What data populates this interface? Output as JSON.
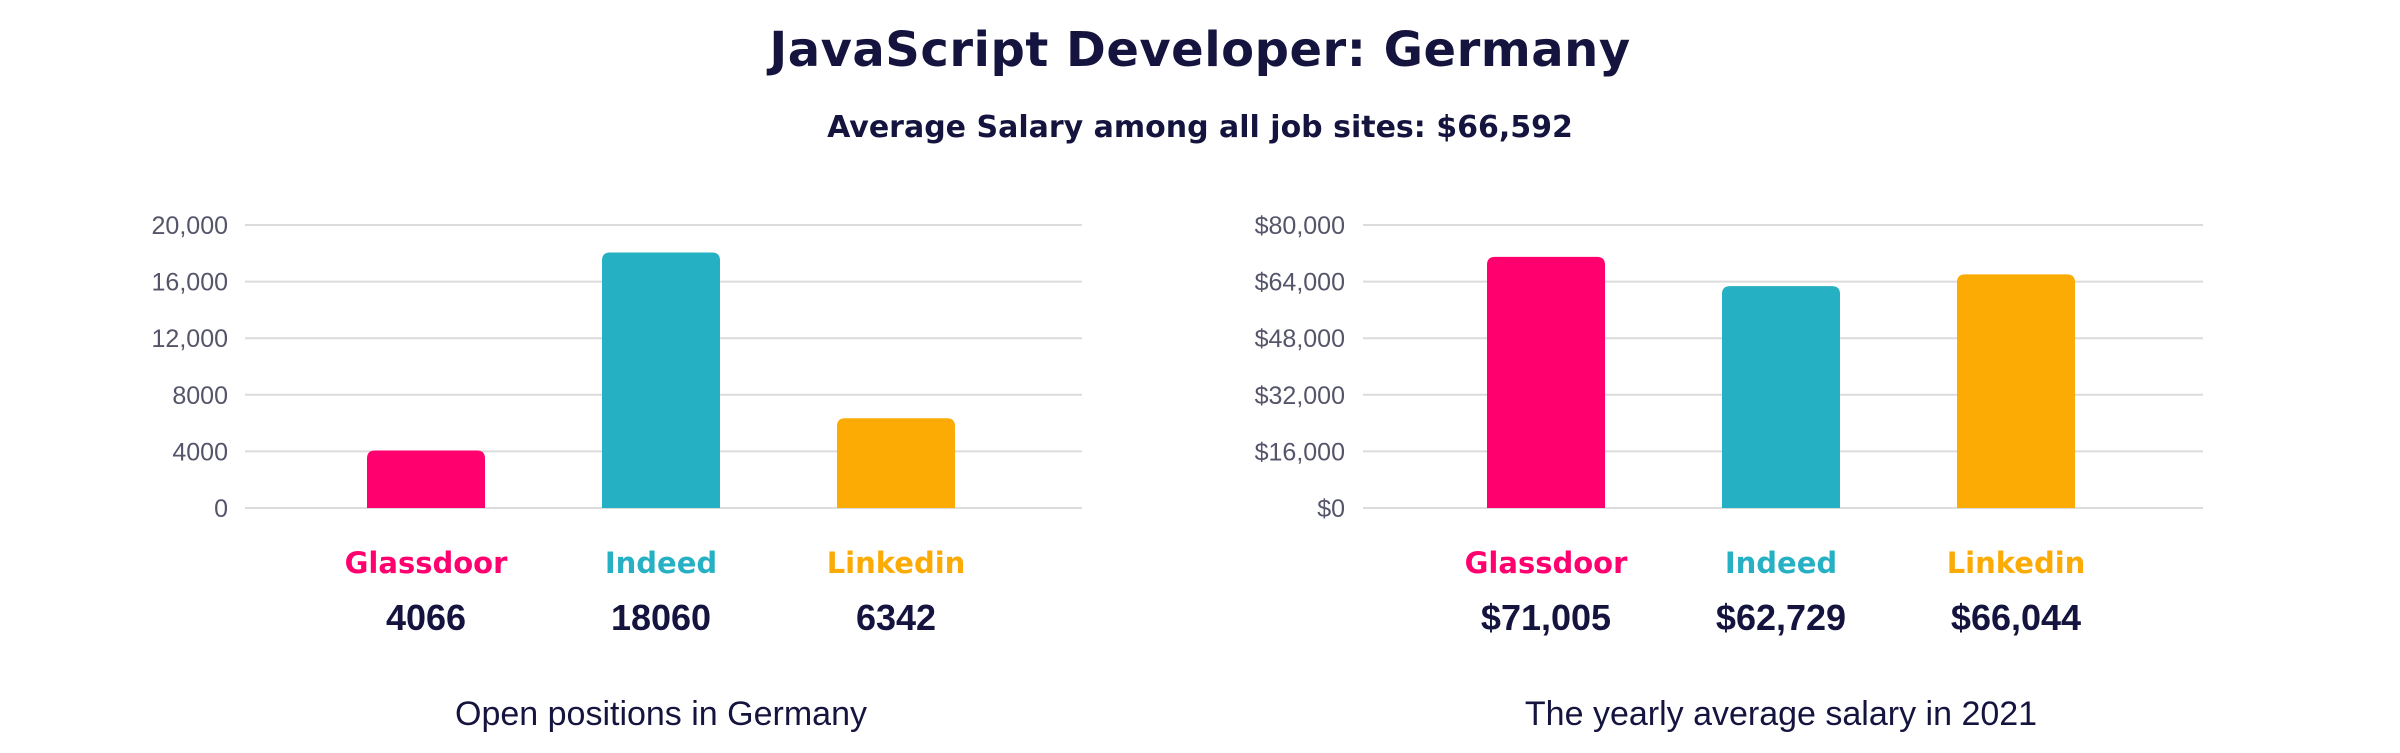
{
  "title": "JavaScript Developer: Germany",
  "subtitle": "Average Salary among all job sites: $66,592",
  "colors": {
    "Glassdoor": "#ff006e",
    "Indeed": "#26b0c3",
    "Linkedin": "#fcab05",
    "text": "#14143f",
    "grid": "#dcdcdc"
  },
  "chart_data": [
    {
      "type": "bar",
      "caption": "Open positions in Germany",
      "categories": [
        "Glassdoor",
        "Indeed",
        "Linkedin"
      ],
      "values": [
        4066,
        18060,
        6342
      ],
      "value_labels": [
        "4066",
        "18060",
        "6342"
      ],
      "ylim": [
        0,
        20000
      ],
      "yticks": [
        0,
        4000,
        8000,
        12000,
        16000,
        20000
      ],
      "ytick_labels": [
        "0",
        "4000",
        "8000",
        "12,000",
        "16,000",
        "20,000"
      ],
      "grid": true,
      "legend": "none"
    },
    {
      "type": "bar",
      "caption": "The yearly average salary in 2021",
      "categories": [
        "Glassdoor",
        "Indeed",
        "Linkedin"
      ],
      "values": [
        71005,
        62729,
        66044
      ],
      "value_labels": [
        "$71,005",
        "$62,729",
        "$66,044"
      ],
      "ylim": [
        0,
        80000
      ],
      "yticks": [
        0,
        16000,
        32000,
        48000,
        64000,
        80000
      ],
      "ytick_labels": [
        "$0",
        "$16,000",
        "$32,000",
        "$48,000",
        "$64,000",
        "$80,000"
      ],
      "grid": true,
      "legend": "none"
    }
  ]
}
